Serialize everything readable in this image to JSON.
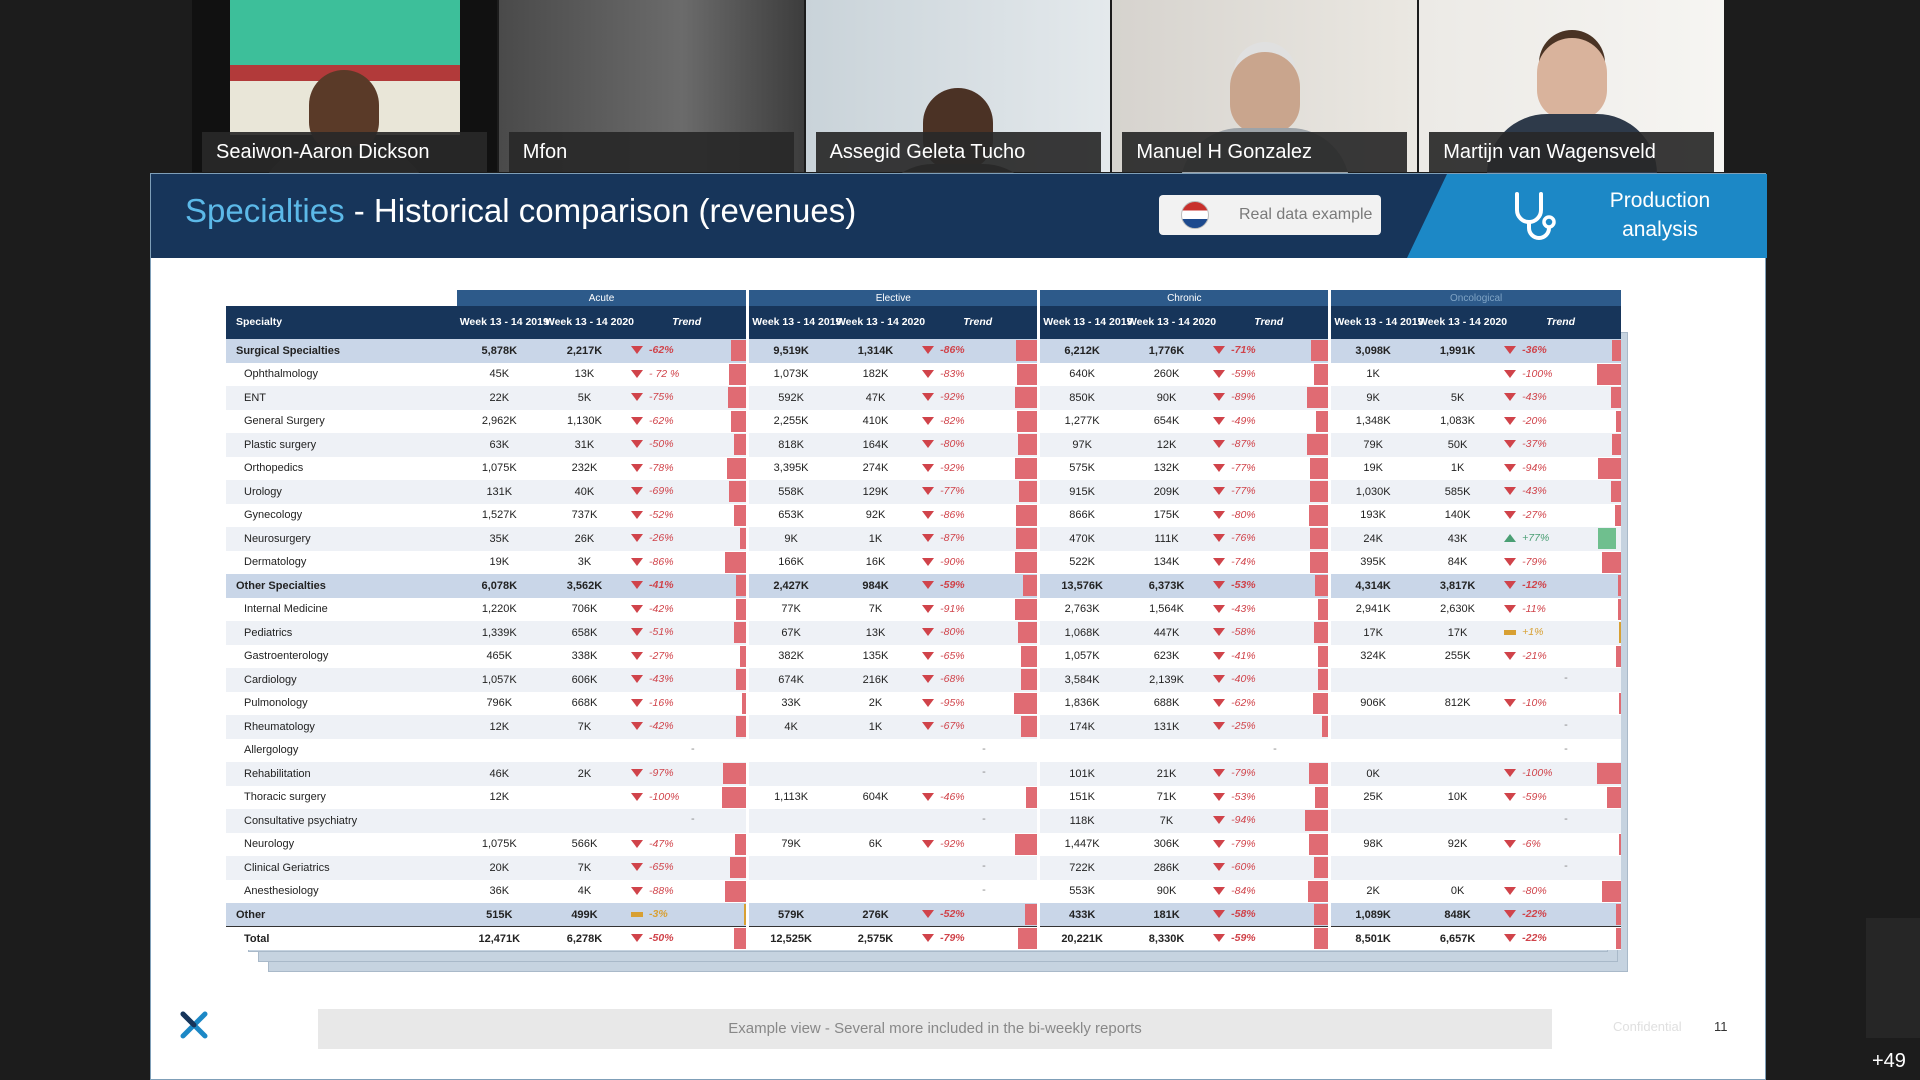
{
  "participants": [
    {
      "name": "Seaiwon-Aaron Dickson"
    },
    {
      "name": "Mfon"
    },
    {
      "name": "Assegid Geleta Tucho"
    },
    {
      "name": "Manuel H Gonzalez"
    },
    {
      "name": "Martijn van Wagensveld"
    }
  ],
  "more_participants": "+49",
  "slide": {
    "title_highlight": "Specialties",
    "title_separator": " - ",
    "title_main": "Historical comparison (revenues)",
    "badge": "Real data example",
    "section_label_line1": "Production",
    "section_label_line2": "analysis",
    "footer_note": "Example view - Several more included in the bi-weekly reports",
    "confidential": "Confidential",
    "page_number": "11",
    "icons": {
      "flag": "netherlands-flag-icon",
      "section": "stethoscope-icon",
      "logo": "company-x-logo"
    }
  },
  "table": {
    "groups": [
      "Acute",
      "Elective",
      "Chronic",
      "Oncological"
    ],
    "specialty_header": "Specialty",
    "col_2019": "Week 13 - 14 2019",
    "col_2020": "Week 13 - 14 2020",
    "col_trend": "Trend",
    "rows": [
      {
        "name": "Surgical Specialties",
        "type": "cat",
        "c": [
          [
            "5,878K",
            "2,217K",
            "-62%",
            "down",
            62
          ],
          [
            "9,519K",
            "1,314K",
            "-86%",
            "down",
            86
          ],
          [
            "6,212K",
            "1,776K",
            "-71%",
            "down",
            71
          ],
          [
            "3,098K",
            "1,991K",
            "-36%",
            "down",
            36
          ]
        ]
      },
      {
        "name": "Ophthalmology",
        "type": "row",
        "c": [
          [
            "45K",
            "13K",
            "- 72 %",
            "down",
            72
          ],
          [
            "1,073K",
            "182K",
            "-83%",
            "down",
            83
          ],
          [
            "640K",
            "260K",
            "-59%",
            "down",
            59
          ],
          [
            "1K",
            "",
            "-100%",
            "down",
            100
          ]
        ]
      },
      {
        "name": "ENT",
        "type": "alt",
        "c": [
          [
            "22K",
            "5K",
            "-75%",
            "down",
            75
          ],
          [
            "592K",
            "47K",
            "-92%",
            "down",
            92
          ],
          [
            "850K",
            "90K",
            "-89%",
            "down",
            89
          ],
          [
            "9K",
            "5K",
            "-43%",
            "down",
            43
          ]
        ]
      },
      {
        "name": "General Surgery",
        "type": "row",
        "c": [
          [
            "2,962K",
            "1,130K",
            "-62%",
            "down",
            62
          ],
          [
            "2,255K",
            "410K",
            "-82%",
            "down",
            82
          ],
          [
            "1,277K",
            "654K",
            "-49%",
            "down",
            49
          ],
          [
            "1,348K",
            "1,083K",
            "-20%",
            "down",
            20
          ]
        ]
      },
      {
        "name": "Plastic surgery",
        "type": "alt",
        "c": [
          [
            "63K",
            "31K",
            "-50%",
            "down",
            50
          ],
          [
            "818K",
            "164K",
            "-80%",
            "down",
            80
          ],
          [
            "97K",
            "12K",
            "-87%",
            "down",
            87
          ],
          [
            "79K",
            "50K",
            "-37%",
            "down",
            37
          ]
        ]
      },
      {
        "name": "Orthopedics",
        "type": "row",
        "c": [
          [
            "1,075K",
            "232K",
            "-78%",
            "down",
            78
          ],
          [
            "3,395K",
            "274K",
            "-92%",
            "down",
            92
          ],
          [
            "575K",
            "132K",
            "-77%",
            "down",
            77
          ],
          [
            "19K",
            "1K",
            "-94%",
            "down",
            94
          ]
        ]
      },
      {
        "name": "Urology",
        "type": "alt",
        "c": [
          [
            "131K",
            "40K",
            "-69%",
            "down",
            69
          ],
          [
            "558K",
            "129K",
            "-77%",
            "down",
            77
          ],
          [
            "915K",
            "209K",
            "-77%",
            "down",
            77
          ],
          [
            "1,030K",
            "585K",
            "-43%",
            "down",
            43
          ]
        ]
      },
      {
        "name": "Gynecology",
        "type": "row",
        "c": [
          [
            "1,527K",
            "737K",
            "-52%",
            "down",
            52
          ],
          [
            "653K",
            "92K",
            "-86%",
            "down",
            86
          ],
          [
            "866K",
            "175K",
            "-80%",
            "down",
            80
          ],
          [
            "193K",
            "140K",
            "-27%",
            "down",
            27
          ]
        ]
      },
      {
        "name": "Neurosurgery",
        "type": "alt",
        "c": [
          [
            "35K",
            "26K",
            "-26%",
            "down",
            26
          ],
          [
            "9K",
            "1K",
            "-87%",
            "down",
            87
          ],
          [
            "470K",
            "111K",
            "-76%",
            "down",
            76
          ],
          [
            "24K",
            "43K",
            "+77%",
            "up",
            77
          ]
        ]
      },
      {
        "name": "Dermatology",
        "type": "row",
        "c": [
          [
            "19K",
            "3K",
            "-86%",
            "down",
            86
          ],
          [
            "166K",
            "16K",
            "-90%",
            "down",
            90
          ],
          [
            "522K",
            "134K",
            "-74%",
            "down",
            74
          ],
          [
            "395K",
            "84K",
            "-79%",
            "down",
            79
          ]
        ]
      },
      {
        "name": "Other Specialties",
        "type": "cat",
        "c": [
          [
            "6,078K",
            "3,562K",
            "-41%",
            "down",
            41
          ],
          [
            "2,427K",
            "984K",
            "-59%",
            "down",
            59
          ],
          [
            "13,576K",
            "6,373K",
            "-53%",
            "down",
            53
          ],
          [
            "4,314K",
            "3,817K",
            "-12%",
            "down",
            12
          ]
        ]
      },
      {
        "name": "Internal Medicine",
        "type": "row",
        "c": [
          [
            "1,220K",
            "706K",
            "-42%",
            "down",
            42
          ],
          [
            "77K",
            "7K",
            "-91%",
            "down",
            91
          ],
          [
            "2,763K",
            "1,564K",
            "-43%",
            "down",
            43
          ],
          [
            "2,941K",
            "2,630K",
            "-11%",
            "down",
            11
          ]
        ]
      },
      {
        "name": "Pediatrics",
        "type": "alt",
        "c": [
          [
            "1,339K",
            "658K",
            "-51%",
            "down",
            51
          ],
          [
            "67K",
            "13K",
            "-80%",
            "down",
            80
          ],
          [
            "1,068K",
            "447K",
            "-58%",
            "down",
            58
          ],
          [
            "17K",
            "17K",
            "+1%",
            "flat",
            1
          ]
        ]
      },
      {
        "name": "Gastroenterology",
        "type": "row",
        "c": [
          [
            "465K",
            "338K",
            "-27%",
            "down",
            27
          ],
          [
            "382K",
            "135K",
            "-65%",
            "down",
            65
          ],
          [
            "1,057K",
            "623K",
            "-41%",
            "down",
            41
          ],
          [
            "324K",
            "255K",
            "-21%",
            "down",
            21
          ]
        ]
      },
      {
        "name": "Cardiology",
        "type": "alt",
        "c": [
          [
            "1,057K",
            "606K",
            "-43%",
            "down",
            43
          ],
          [
            "674K",
            "216K",
            "-68%",
            "down",
            68
          ],
          [
            "3,584K",
            "2,139K",
            "-40%",
            "down",
            40
          ],
          [
            "",
            "",
            "-",
            "none",
            0
          ]
        ]
      },
      {
        "name": "Pulmonology",
        "type": "row",
        "c": [
          [
            "796K",
            "668K",
            "-16%",
            "down",
            16
          ],
          [
            "33K",
            "2K",
            "-95%",
            "down",
            95
          ],
          [
            "1,836K",
            "688K",
            "-62%",
            "down",
            62
          ],
          [
            "906K",
            "812K",
            "-10%",
            "down",
            10
          ]
        ]
      },
      {
        "name": "Rheumatology",
        "type": "alt",
        "c": [
          [
            "12K",
            "7K",
            "-42%",
            "down",
            42
          ],
          [
            "4K",
            "1K",
            "-67%",
            "down",
            67
          ],
          [
            "174K",
            "131K",
            "-25%",
            "down",
            25
          ],
          [
            "",
            "",
            "-",
            "none",
            0
          ]
        ]
      },
      {
        "name": "Allergology",
        "type": "row",
        "c": [
          [
            "",
            "",
            "-",
            "none",
            0
          ],
          [
            "",
            "",
            "-",
            "none",
            0
          ],
          [
            "",
            "",
            "-",
            "none",
            0
          ],
          [
            "",
            "",
            "-",
            "none",
            0
          ]
        ]
      },
      {
        "name": "Rehabilitation",
        "type": "alt",
        "c": [
          [
            "46K",
            "2K",
            "-97%",
            "down",
            97
          ],
          [
            "",
            "",
            "-",
            "none",
            0
          ],
          [
            "101K",
            "21K",
            "-79%",
            "down",
            79
          ],
          [
            "0K",
            "",
            "-100%",
            "down",
            100
          ]
        ]
      },
      {
        "name": "Thoracic surgery",
        "type": "row",
        "c": [
          [
            "12K",
            "",
            "-100%",
            "down",
            100
          ],
          [
            "1,113K",
            "604K",
            "-46%",
            "down",
            46
          ],
          [
            "151K",
            "71K",
            "-53%",
            "down",
            53
          ],
          [
            "25K",
            "10K",
            "-59%",
            "down",
            59
          ]
        ]
      },
      {
        "name": "Consultative psychiatry",
        "type": "alt",
        "c": [
          [
            "",
            "",
            "-",
            "none",
            0
          ],
          [
            "",
            "",
            "-",
            "none",
            0
          ],
          [
            "118K",
            "7K",
            "-94%",
            "down",
            94
          ],
          [
            "",
            "",
            "-",
            "none",
            0
          ]
        ]
      },
      {
        "name": "Neurology",
        "type": "row",
        "c": [
          [
            "1,075K",
            "566K",
            "-47%",
            "down",
            47
          ],
          [
            "79K",
            "6K",
            "-92%",
            "down",
            92
          ],
          [
            "1,447K",
            "306K",
            "-79%",
            "down",
            79
          ],
          [
            "98K",
            "92K",
            "-6%",
            "down",
            6
          ]
        ]
      },
      {
        "name": "Clinical Geriatrics",
        "type": "alt",
        "c": [
          [
            "20K",
            "7K",
            "-65%",
            "down",
            65
          ],
          [
            "",
            "",
            "-",
            "none",
            0
          ],
          [
            "722K",
            "286K",
            "-60%",
            "down",
            60
          ],
          [
            "",
            "",
            "-",
            "none",
            0
          ]
        ]
      },
      {
        "name": "Anesthesiology",
        "type": "row",
        "c": [
          [
            "36K",
            "4K",
            "-88%",
            "down",
            88
          ],
          [
            "",
            "",
            "-",
            "none",
            0
          ],
          [
            "553K",
            "90K",
            "-84%",
            "down",
            84
          ],
          [
            "2K",
            "0K",
            "-80%",
            "down",
            80
          ]
        ]
      },
      {
        "name": "Other",
        "type": "cat",
        "c": [
          [
            "515K",
            "499K",
            "-3%",
            "flat",
            3
          ],
          [
            "579K",
            "276K",
            "-52%",
            "down",
            52
          ],
          [
            "433K",
            "181K",
            "-58%",
            "down",
            58
          ],
          [
            "1,089K",
            "848K",
            "-22%",
            "down",
            22
          ]
        ]
      },
      {
        "name": "Total",
        "type": "total",
        "c": [
          [
            "12,471K",
            "6,278K",
            "-50%",
            "down",
            50
          ],
          [
            "12,525K",
            "2,575K",
            "-79%",
            "down",
            79
          ],
          [
            "20,221K",
            "8,330K",
            "-59%",
            "down",
            59
          ],
          [
            "8,501K",
            "6,657K",
            "-22%",
            "down",
            22
          ]
        ]
      }
    ]
  }
}
